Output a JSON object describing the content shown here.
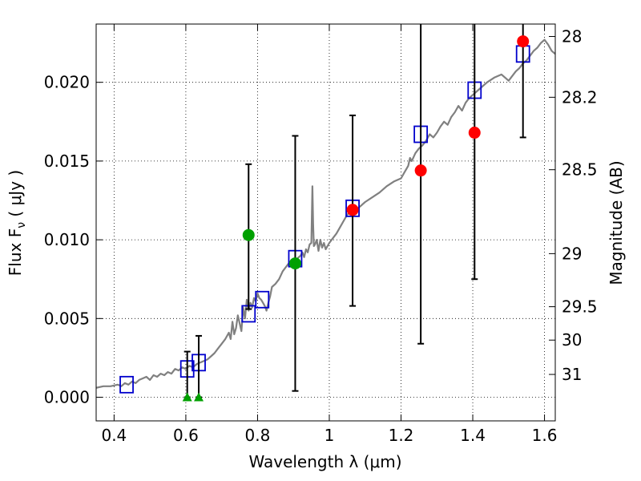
{
  "chart_data": {
    "type": "scatter",
    "xlabel": "Wavelength  λ (μm)",
    "ylabel": "Flux  F",
    "ylabel_sub": "ν",
    "ylabel_unit": "  ( μJy )",
    "y2label": "Magnitude (AB)",
    "xlim": [
      0.35,
      1.63
    ],
    "ylim": [
      -0.0015,
      0.0237
    ],
    "grid": true,
    "x_ticks": [
      0.4,
      0.6,
      0.8,
      1.0,
      1.2,
      1.4,
      1.6
    ],
    "x_tick_labels": [
      "0.4",
      "0.6",
      "0.8",
      "1",
      "1.2",
      "1.4",
      "1.6"
    ],
    "y_ticks": [
      0.0,
      0.005,
      0.01,
      0.015,
      0.02
    ],
    "y_tick_labels": [
      "0.000",
      "0.005",
      "0.010",
      "0.015",
      "0.020"
    ],
    "mag_ticks": [
      {
        "label": "28",
        "flux": 0.02291
      },
      {
        "label": "28.2",
        "flux": 0.01905
      },
      {
        "label": "28.5",
        "flux": 0.01445
      },
      {
        "label": "29",
        "flux": 0.00912
      },
      {
        "label": "29.5",
        "flux": 0.00575
      },
      {
        "label": "30",
        "flux": 0.00363
      },
      {
        "label": "31",
        "flux": 0.00145
      }
    ],
    "series": [
      {
        "name": "model spectrum",
        "kind": "line",
        "color": "#808080",
        "x": [
          0.35,
          0.37,
          0.39,
          0.41,
          0.42,
          0.43,
          0.44,
          0.45,
          0.46,
          0.47,
          0.48,
          0.49,
          0.5,
          0.51,
          0.52,
          0.53,
          0.54,
          0.55,
          0.56,
          0.57,
          0.58,
          0.59,
          0.6,
          0.61,
          0.62,
          0.63,
          0.64,
          0.65,
          0.66,
          0.67,
          0.68,
          0.69,
          0.7,
          0.71,
          0.72,
          0.725,
          0.73,
          0.735,
          0.74,
          0.745,
          0.75,
          0.755,
          0.76,
          0.765,
          0.77,
          0.775,
          0.78,
          0.785,
          0.79,
          0.795,
          0.8,
          0.805,
          0.81,
          0.815,
          0.82,
          0.825,
          0.83,
          0.835,
          0.84,
          0.85,
          0.86,
          0.87,
          0.88,
          0.89,
          0.9,
          0.91,
          0.92,
          0.925,
          0.93,
          0.935,
          0.94,
          0.945,
          0.95,
          0.953,
          0.955,
          0.957,
          0.96,
          0.965,
          0.97,
          0.975,
          0.98,
          0.985,
          0.99,
          0.995,
          1.0,
          1.01,
          1.02,
          1.03,
          1.04,
          1.05,
          1.06,
          1.07,
          1.08,
          1.09,
          1.1,
          1.12,
          1.14,
          1.16,
          1.18,
          1.2,
          1.21,
          1.22,
          1.225,
          1.23,
          1.24,
          1.25,
          1.26,
          1.27,
          1.28,
          1.29,
          1.3,
          1.31,
          1.32,
          1.33,
          1.34,
          1.35,
          1.36,
          1.37,
          1.38,
          1.39,
          1.4,
          1.42,
          1.44,
          1.46,
          1.48,
          1.5,
          1.51,
          1.52,
          1.53,
          1.54,
          1.55,
          1.56,
          1.57,
          1.58,
          1.59,
          1.6,
          1.61,
          1.62,
          1.63
        ],
        "y": [
          0.0006,
          0.0007,
          0.0007,
          0.0008,
          0.0007,
          0.0009,
          0.0008,
          0.001,
          0.0009,
          0.0011,
          0.0012,
          0.0013,
          0.0011,
          0.0014,
          0.0013,
          0.0015,
          0.0014,
          0.0016,
          0.0015,
          0.0018,
          0.0017,
          0.0019,
          0.0018,
          0.002,
          0.0019,
          0.0021,
          0.0022,
          0.0023,
          0.0024,
          0.0026,
          0.0028,
          0.0031,
          0.0034,
          0.0037,
          0.0041,
          0.0037,
          0.0048,
          0.004,
          0.0044,
          0.0052,
          0.0047,
          0.0042,
          0.0057,
          0.005,
          0.0062,
          0.0055,
          0.006,
          0.0057,
          0.0063,
          0.0061,
          0.0066,
          0.0063,
          0.0062,
          0.006,
          0.0058,
          0.0055,
          0.006,
          0.0064,
          0.007,
          0.0072,
          0.0075,
          0.008,
          0.0083,
          0.0086,
          0.0085,
          0.0088,
          0.009,
          0.0092,
          0.0089,
          0.0094,
          0.0092,
          0.0097,
          0.0098,
          0.0134,
          0.011,
          0.0096,
          0.0097,
          0.01,
          0.0093,
          0.01,
          0.0095,
          0.0098,
          0.0094,
          0.0096,
          0.0098,
          0.0101,
          0.0104,
          0.0108,
          0.0112,
          0.0116,
          0.0118,
          0.0117,
          0.012,
          0.0122,
          0.0124,
          0.0127,
          0.013,
          0.0134,
          0.0137,
          0.0139,
          0.0143,
          0.0147,
          0.0152,
          0.015,
          0.0155,
          0.0158,
          0.016,
          0.0163,
          0.0167,
          0.0165,
          0.0168,
          0.0172,
          0.0175,
          0.0173,
          0.0178,
          0.0181,
          0.0185,
          0.0182,
          0.0187,
          0.019,
          0.0192,
          0.0196,
          0.02,
          0.0203,
          0.0205,
          0.0201,
          0.0204,
          0.0207,
          0.0209,
          0.0212,
          0.0214,
          0.0217,
          0.022,
          0.0222,
          0.0225,
          0.0227,
          0.0224,
          0.022,
          0.0218
        ]
      },
      {
        "name": "model photometry",
        "kind": "open-square",
        "color": "#0000cc",
        "x": [
          0.435,
          0.604,
          0.636,
          0.775,
          0.813,
          0.905,
          1.065,
          1.255,
          1.405,
          1.54
        ],
        "y": [
          0.0008,
          0.0018,
          0.0022,
          0.0053,
          0.0062,
          0.0088,
          0.012,
          0.0167,
          0.0195,
          0.0218
        ]
      },
      {
        "name": "observed flux (green)",
        "kind": "circle-errorbar",
        "color": "#00a000",
        "x": [
          0.775,
          0.905
        ],
        "y": [
          0.0103,
          0.0085
        ],
        "err_low": [
          0.0056,
          0.0004
        ],
        "err_high": [
          0.0148,
          0.0166
        ]
      },
      {
        "name": "observed flux (red)",
        "kind": "circle-errorbar",
        "color": "#ff0000",
        "x": [
          1.065,
          1.255,
          1.405,
          1.54
        ],
        "y": [
          0.0119,
          0.0144,
          0.0168,
          0.0226
        ],
        "err_low": [
          0.0058,
          0.0034,
          0.0075,
          0.0165
        ],
        "err_high": [
          0.0179,
          0.0237,
          0.0237,
          0.0237
        ]
      },
      {
        "name": "upper limits",
        "kind": "triangle-errorbar",
        "color": "#00a000",
        "x": [
          0.604,
          0.636
        ],
        "y": [
          0.0,
          0.0
        ],
        "err_low": [
          0.0,
          0.0
        ],
        "err_high": [
          0.0029,
          0.0039
        ]
      }
    ]
  }
}
